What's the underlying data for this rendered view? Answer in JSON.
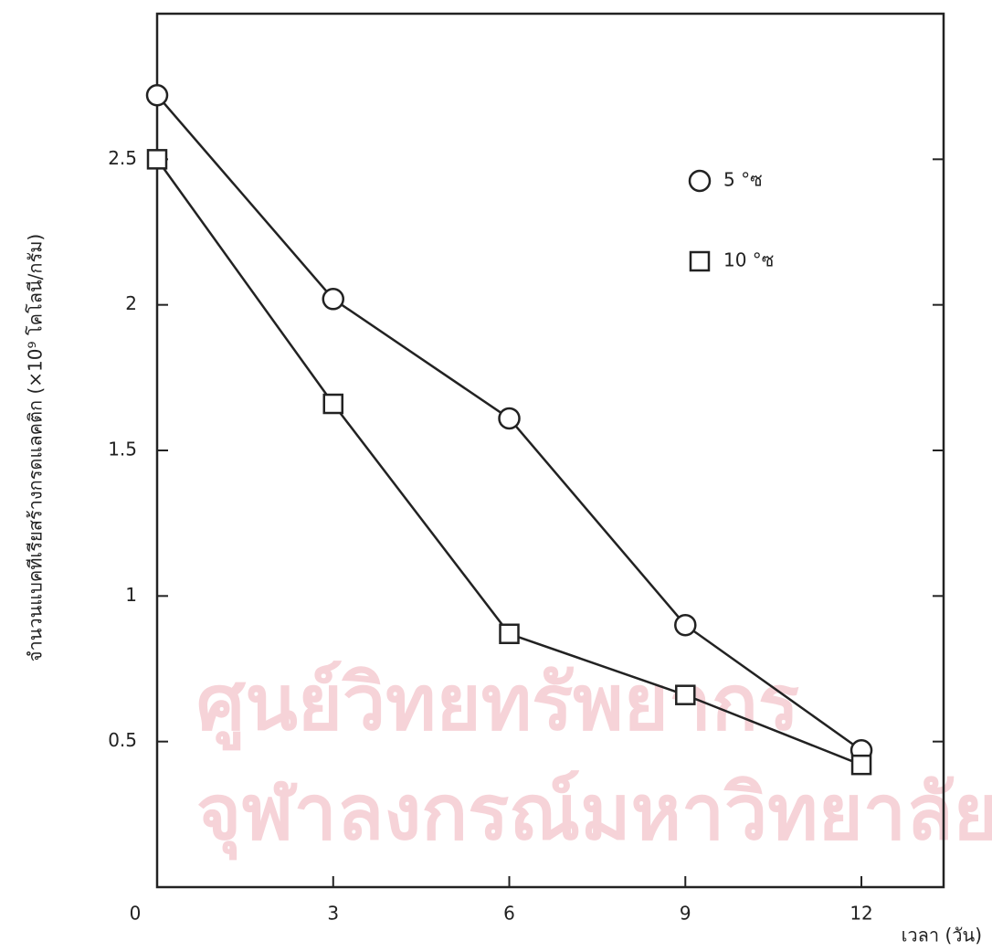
{
  "watermark": [
    "ศูนย์วิทยทรัพยากร",
    "จุฬาลงกรณ์มหาวิทยาลัย"
  ],
  "chart_data": {
    "type": "line",
    "x_label": "เวลา (วัน)",
    "y_label": "จำนวนแบคทีเรียสร้างกรดแลคติก (×10⁹ โคโลนี/กรัม)",
    "x": [
      0,
      3,
      6,
      9,
      12
    ],
    "series": [
      {
        "name": "5 °ซ",
        "marker": "circle",
        "color": "#222222",
        "values": [
          2.72,
          2.02,
          1.61,
          0.9,
          0.47
        ]
      },
      {
        "name": "10 °ซ",
        "marker": "square",
        "color": "#222222",
        "values": [
          2.5,
          1.66,
          0.87,
          0.66,
          0.42
        ]
      }
    ],
    "xlim": [
      0,
      13.4
    ],
    "ylim": [
      0,
      3
    ],
    "xticks": [
      0,
      3,
      6,
      9,
      12
    ],
    "yticks": [
      0.5,
      1.0,
      1.5,
      2.0,
      2.5
    ],
    "grid": false,
    "legend": "upper right"
  }
}
